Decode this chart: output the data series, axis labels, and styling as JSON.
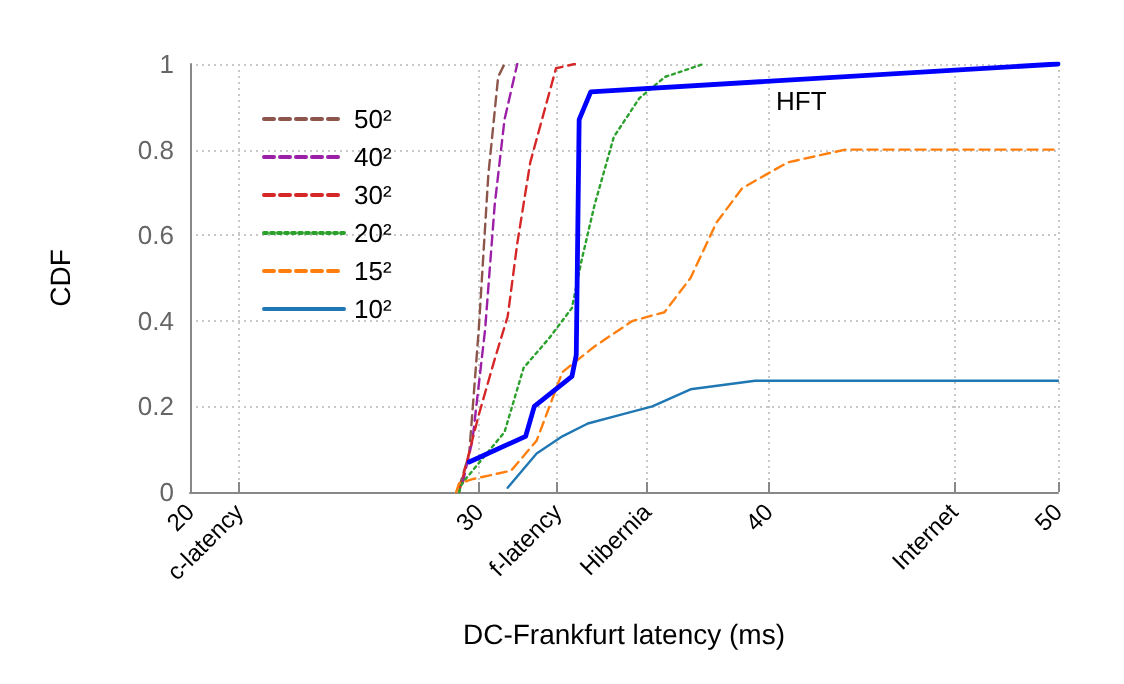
{
  "chart_data": {
    "type": "line",
    "xlabel": "DC-Frankfurt latency (ms)",
    "ylabel": "CDF",
    "xlim": [
      20,
      50
    ],
    "ylim": [
      0,
      1
    ],
    "xticks": [
      20,
      {
        "value": 21.7,
        "label": "c-latency"
      },
      30,
      {
        "value": 32.7,
        "label": "f-latency"
      },
      {
        "value": 35.8,
        "label": "Hibernia"
      },
      40,
      {
        "value": 46.4,
        "label": "Internet"
      },
      50
    ],
    "yticks": [
      0,
      0.2,
      0.4,
      0.6,
      0.8,
      1
    ],
    "grid": true,
    "legend": "top left",
    "marker": "none",
    "annotations": [
      "HFT"
    ],
    "series": [
      {
        "name": "50²",
        "color": "#8c564b",
        "line_style": "dashed",
        "x": [
          29.3,
          29.65,
          29.98,
          30.31,
          30.65,
          30.87
        ],
        "values": [
          0.01,
          0.09,
          0.38,
          0.74,
          0.97,
          1.0
        ]
      },
      {
        "name": "40²",
        "color": "#9c1fa8",
        "line_style": "dashed",
        "x": [
          29.42,
          29.76,
          30.2,
          30.53,
          30.87,
          31.31
        ],
        "values": [
          0.02,
          0.12,
          0.38,
          0.67,
          0.87,
          1.0
        ]
      },
      {
        "name": "30²",
        "color": "#d62728",
        "line_style": "dashed",
        "x": [
          29.3,
          29.98,
          30.53,
          30.98,
          31.31,
          31.76,
          32.65,
          33.3
        ],
        "values": [
          0,
          0.18,
          0.31,
          0.41,
          0.58,
          0.77,
          0.99,
          1.0
        ]
      },
      {
        "name": "20²",
        "color": "#2ca02c",
        "line_style": "dotted",
        "x": [
          29.3,
          29.4,
          30.87,
          31.53,
          32.42,
          33.2,
          33.53,
          33.98,
          34.65,
          35.53,
          36.42,
          37.75
        ],
        "values": [
          0,
          0.02,
          0.14,
          0.29,
          0.36,
          0.43,
          0.54,
          0.67,
          0.83,
          0.92,
          0.97,
          1.0
        ]
      },
      {
        "name": "15²",
        "color": "#ff7f0e",
        "line_style": "dashed",
        "x": [
          29.2,
          29.3,
          29.76,
          31.1,
          31.98,
          32.87,
          33.98,
          35.3,
          36.4,
          37.3,
          38.2,
          39.09,
          40.65,
          42.65,
          50
        ],
        "values": [
          0,
          0.02,
          0.03,
          0.05,
          0.12,
          0.28,
          0.34,
          0.4,
          0.42,
          0.5,
          0.63,
          0.71,
          0.77,
          0.8,
          0.8
        ]
      },
      {
        "name": "10²",
        "color": "#1f77b4",
        "line_style": "solid",
        "x": [
          30.98,
          31.98,
          32.87,
          33.75,
          34.87,
          35.98,
          37.3,
          39.53,
          50
        ],
        "values": [
          0.01,
          0.09,
          0.13,
          0.16,
          0.18,
          0.2,
          0.24,
          0.26,
          0.26
        ]
      },
      {
        "color": "#0000ff",
        "line_style": "solid",
        "x": [
          29.65,
          31.6,
          31.9,
          33.2,
          33.35,
          33.45,
          33.85,
          50
        ],
        "values": [
          0.07,
          0.13,
          0.2,
          0.27,
          0.32,
          0.87,
          0.935,
          1.0
        ]
      }
    ]
  }
}
